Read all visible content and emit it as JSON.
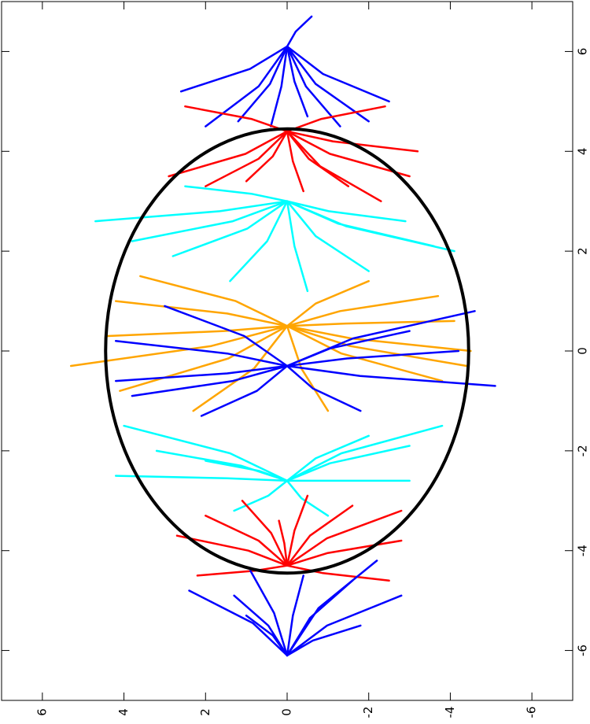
{
  "chart_data": {
    "type": "trajectories",
    "xlim": [
      -7,
      7
    ],
    "ylim": [
      -7,
      7
    ],
    "xticks": [
      -6,
      -4,
      -2,
      0,
      2,
      4,
      6
    ],
    "yticks": [
      -6,
      -4,
      -2,
      0,
      2,
      4,
      6
    ],
    "circle": {
      "center": [
        0,
        0
      ],
      "radius": 4.45,
      "color": "#000000"
    },
    "series": [
      {
        "color": "#0000ff",
        "lines": [
          {
            "x": [
              6.1,
              5.3,
              4.5
            ],
            "y": [
              0,
              0.7,
              2.0
            ]
          },
          {
            "x": [
              6.1,
              5.35,
              4.6
            ],
            "y": [
              0,
              0.42,
              1.2
            ]
          },
          {
            "x": [
              6.1,
              5.3,
              4.5
            ],
            "y": [
              0,
              0.14,
              0.4
            ]
          },
          {
            "x": [
              6.1,
              5.4,
              4.7
            ],
            "y": [
              0,
              -0.18,
              -0.5
            ]
          },
          {
            "x": [
              6.1,
              5.3,
              4.5
            ],
            "y": [
              0,
              -0.46,
              -1.3
            ]
          },
          {
            "x": [
              6.1,
              5.35,
              4.6
            ],
            "y": [
              0,
              -0.7,
              -2.0
            ]
          },
          {
            "x": [
              6.1,
              5.65,
              5.2
            ],
            "y": [
              0,
              0.91,
              2.6
            ]
          },
          {
            "x": [
              6.1,
              5.55,
              5.0
            ],
            "y": [
              0,
              -0.88,
              -2.5
            ]
          },
          {
            "x": [
              6.1,
              6.4,
              6.7
            ],
            "y": [
              0,
              -0.21,
              -0.6
            ]
          }
        ]
      },
      {
        "color": "#ff0000",
        "lines": [
          {
            "x": [
              4.4,
              3.95,
              3.5
            ],
            "y": [
              0,
              1.02,
              2.9
            ]
          },
          {
            "x": [
              4.4,
              3.85,
              3.3
            ],
            "y": [
              0,
              0.7,
              2.0
            ]
          },
          {
            "x": [
              4.4,
              3.9,
              3.4
            ],
            "y": [
              0,
              0.35,
              1.0
            ]
          },
          {
            "x": [
              4.4,
              3.8,
              3.2
            ],
            "y": [
              0,
              -0.14,
              -0.4
            ]
          },
          {
            "x": [
              4.4,
              3.85,
              3.3
            ],
            "y": [
              0,
              -0.53,
              -1.5
            ]
          },
          {
            "x": [
              4.4,
              3.7,
              3.0
            ],
            "y": [
              0,
              -0.81,
              -2.3
            ]
          },
          {
            "x": [
              4.4,
              3.95,
              3.5
            ],
            "y": [
              0,
              -1.05,
              -3.0
            ]
          },
          {
            "x": [
              4.4,
              4.65,
              4.9
            ],
            "y": [
              0,
              0.88,
              2.5
            ]
          },
          {
            "x": [
              4.4,
              4.65,
              4.9
            ],
            "y": [
              0,
              -0.84,
              -2.4
            ]
          },
          {
            "x": [
              4.4,
              4.2,
              4.0
            ],
            "y": [
              0,
              -1.12,
              -3.2
            ]
          }
        ]
      },
      {
        "color": "#00ffff",
        "lines": [
          {
            "x": [
              3.0,
              2.8,
              2.6
            ],
            "y": [
              0,
              1.65,
              4.7
            ]
          },
          {
            "x": [
              3.0,
              2.6,
              2.2
            ],
            "y": [
              0,
              1.33,
              3.8
            ]
          },
          {
            "x": [
              3.0,
              2.45,
              1.9
            ],
            "y": [
              0,
              0.98,
              2.8
            ]
          },
          {
            "x": [
              3.0,
              2.2,
              1.4
            ],
            "y": [
              0,
              0.49,
              1.4
            ]
          },
          {
            "x": [
              3.0,
              2.1,
              1.2
            ],
            "y": [
              0,
              -0.18,
              -0.5
            ]
          },
          {
            "x": [
              3.0,
              2.3,
              1.6
            ],
            "y": [
              0,
              -0.7,
              -2.0
            ]
          },
          {
            "x": [
              3.0,
              2.55,
              2.1
            ],
            "y": [
              0,
              -1.26,
              -3.6
            ]
          },
          {
            "x": [
              3.0,
              2.5,
              2.0
            ],
            "y": [
              0,
              -1.44,
              -4.1
            ]
          },
          {
            "x": [
              3.0,
              3.15,
              3.3
            ],
            "y": [
              0,
              0.88,
              2.5
            ]
          },
          {
            "x": [
              3.0,
              2.8,
              2.6
            ],
            "y": [
              0,
              -1.02,
              -2.9
            ]
          }
        ]
      },
      {
        "color": "#ffa500",
        "lines": [
          {
            "x": [
              0.5,
              1.0,
              1.5
            ],
            "y": [
              0,
              1.26,
              3.6
            ]
          },
          {
            "x": [
              0.5,
              0.75,
              1.0
            ],
            "y": [
              0,
              1.47,
              4.2
            ]
          },
          {
            "x": [
              0.5,
              0.4,
              0.3
            ],
            "y": [
              0,
              1.54,
              4.4
            ]
          },
          {
            "x": [
              0.5,
              0.1,
              -0.3
            ],
            "y": [
              0,
              1.86,
              5.3
            ]
          },
          {
            "x": [
              0.5,
              -0.15,
              -0.8
            ],
            "y": [
              0,
              1.44,
              4.1
            ]
          },
          {
            "x": [
              0.5,
              -0.35,
              -1.2
            ],
            "y": [
              0,
              0.81,
              2.3
            ]
          },
          {
            "x": [
              0.5,
              -0.35,
              -1.2
            ],
            "y": [
              0,
              -0.35,
              -1.0
            ]
          },
          {
            "x": [
              0.5,
              -0.05,
              -0.6
            ],
            "y": [
              0,
              -1.33,
              -3.8
            ]
          },
          {
            "x": [
              0.5,
              0.25,
              0.0
            ],
            "y": [
              0,
              -1.58,
              -4.5
            ]
          },
          {
            "x": [
              0.5,
              0.55,
              0.6
            ],
            "y": [
              0,
              -1.44,
              -4.1
            ]
          },
          {
            "x": [
              0.5,
              0.8,
              1.1
            ],
            "y": [
              0,
              -1.3,
              -3.7
            ]
          },
          {
            "x": [
              0.5,
              0.95,
              1.4
            ],
            "y": [
              0,
              -0.7,
              -2.0
            ]
          },
          {
            "x": [
              0.5,
              0.1,
              -0.3
            ],
            "y": [
              0,
              -1.54,
              -4.4
            ]
          }
        ]
      },
      {
        "color": "#0000ff",
        "lines": [
          {
            "x": [
              -0.3,
              0.3,
              0.9
            ],
            "y": [
              0,
              1.05,
              3.0
            ]
          },
          {
            "x": [
              -0.3,
              -0.05,
              0.2
            ],
            "y": [
              0,
              1.47,
              4.2
            ]
          },
          {
            "x": [
              -0.3,
              -0.45,
              -0.6
            ],
            "y": [
              0,
              1.47,
              4.2
            ]
          },
          {
            "x": [
              -0.3,
              -0.8,
              -1.3
            ],
            "y": [
              0,
              0.74,
              2.1
            ]
          },
          {
            "x": [
              -0.3,
              -0.75,
              -1.2
            ],
            "y": [
              0,
              -0.63,
              -1.8
            ]
          },
          {
            "x": [
              -0.3,
              -0.5,
              -0.7
            ],
            "y": [
              0,
              -1.79,
              -5.1
            ]
          },
          {
            "x": [
              -0.3,
              -0.15,
              0.0
            ],
            "y": [
              0,
              -1.47,
              -4.2
            ]
          },
          {
            "x": [
              -0.3,
              0.25,
              0.8
            ],
            "y": [
              0,
              -1.61,
              -4.6
            ]
          },
          {
            "x": [
              -0.3,
              -0.6,
              -0.9
            ],
            "y": [
              0,
              1.33,
              3.8
            ]
          },
          {
            "x": [
              -0.3,
              0.05,
              0.4
            ],
            "y": [
              0,
              -1.05,
              -3.0
            ]
          }
        ]
      },
      {
        "color": "#00ffff",
        "lines": [
          {
            "x": [
              -2.6,
              -2.05,
              -1.5
            ],
            "y": [
              0,
              1.4,
              4.0
            ]
          },
          {
            "x": [
              -2.6,
              -2.3,
              -2.0
            ],
            "y": [
              0,
              1.12,
              3.2
            ]
          },
          {
            "x": [
              -2.6,
              -2.55,
              -2.5
            ],
            "y": [
              0,
              1.47,
              4.2
            ]
          },
          {
            "x": [
              -2.6,
              -2.4,
              -2.2
            ],
            "y": [
              0,
              0.7,
              2.0
            ]
          },
          {
            "x": [
              -2.6,
              -2.15,
              -1.7
            ],
            "y": [
              0,
              -0.7,
              -2.0
            ]
          },
          {
            "x": [
              -2.6,
              -2.05,
              -1.5
            ],
            "y": [
              0,
              -1.33,
              -3.8
            ]
          },
          {
            "x": [
              -2.6,
              -2.25,
              -1.9
            ],
            "y": [
              0,
              -1.05,
              -3.0
            ]
          },
          {
            "x": [
              -2.6,
              -2.6,
              -2.6
            ],
            "y": [
              0,
              -1.05,
              -3.0
            ]
          },
          {
            "x": [
              -2.6,
              -2.9,
              -3.2
            ],
            "y": [
              0,
              0.46,
              1.3
            ]
          },
          {
            "x": [
              -2.6,
              -2.95,
              -3.3
            ],
            "y": [
              0,
              -0.35,
              -1.0
            ]
          }
        ]
      },
      {
        "color": "#ff0000",
        "lines": [
          {
            "x": [
              -4.3,
              -4.0,
              -3.7
            ],
            "y": [
              0,
              0.95,
              2.7
            ]
          },
          {
            "x": [
              -4.3,
              -3.8,
              -3.3
            ],
            "y": [
              0,
              0.7,
              2.0
            ]
          },
          {
            "x": [
              -4.3,
              -3.65,
              -3.0
            ],
            "y": [
              0,
              0.39,
              1.1
            ]
          },
          {
            "x": [
              -4.3,
              -3.6,
              -2.9
            ],
            "y": [
              0,
              -0.18,
              -0.5
            ]
          },
          {
            "x": [
              -4.3,
              -3.7,
              -3.1
            ],
            "y": [
              0,
              -0.56,
              -1.6
            ]
          },
          {
            "x": [
              -4.3,
              -3.75,
              -3.2
            ],
            "y": [
              0,
              -0.98,
              -2.8
            ]
          },
          {
            "x": [
              -4.3,
              -4.05,
              -3.8
            ],
            "y": [
              0,
              -0.98,
              -2.8
            ]
          },
          {
            "x": [
              -4.3,
              -4.4,
              -4.5
            ],
            "y": [
              0,
              0.77,
              2.2
            ]
          },
          {
            "x": [
              -4.3,
              -4.45,
              -4.6
            ],
            "y": [
              0,
              -0.88,
              -2.5
            ]
          },
          {
            "x": [
              -4.3,
              -3.85,
              -3.4
            ],
            "y": [
              0,
              0.07,
              0.2
            ]
          }
        ]
      },
      {
        "color": "#0000ff",
        "lines": [
          {
            "x": [
              -6.1,
              -5.45,
              -4.8
            ],
            "y": [
              0,
              0.84,
              2.4
            ]
          },
          {
            "x": [
              -6.1,
              -5.5,
              -4.9
            ],
            "y": [
              0,
              0.46,
              1.3
            ]
          },
          {
            "x": [
              -6.1,
              -5.25,
              -4.4
            ],
            "y": [
              0,
              0.32,
              0.9
            ]
          },
          {
            "x": [
              -6.1,
              -5.3,
              -4.5
            ],
            "y": [
              0,
              -0.14,
              -0.4
            ]
          },
          {
            "x": [
              -6.1,
              -5.35,
              -4.6
            ],
            "y": [
              0,
              -0.56,
              -1.6
            ]
          },
          {
            "x": [
              -6.1,
              -5.15,
              -4.2
            ],
            "y": [
              0,
              -0.77,
              -2.2
            ]
          },
          {
            "x": [
              -6.1,
              -5.5,
              -4.9
            ],
            "y": [
              0,
              -0.98,
              -2.8
            ]
          },
          {
            "x": [
              -6.1,
              -5.7,
              -5.3
            ],
            "y": [
              0,
              0.35,
              1.0
            ]
          },
          {
            "x": [
              -6.1,
              -5.8,
              -5.5
            ],
            "y": [
              0,
              -0.63,
              -1.8
            ]
          }
        ]
      }
    ]
  }
}
